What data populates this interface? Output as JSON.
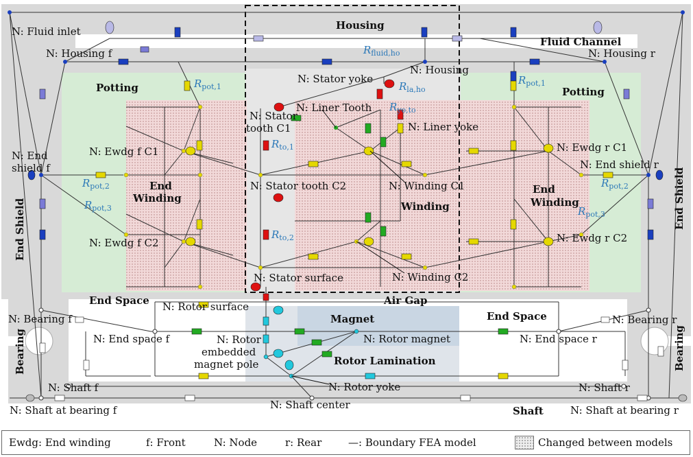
{
  "regions": {
    "housing": "Housing",
    "fluid_channel": "Fluid Channel",
    "potting_f": "Potting",
    "potting_r": "Potting",
    "end_winding_f": [
      "End",
      "Winding"
    ],
    "end_winding_r": [
      "End",
      "Winding"
    ],
    "winding": "Winding",
    "end_shield_f": "End Shield",
    "end_shield_r": "End Shield",
    "end_space_f": "End Space",
    "end_space_r": "End Space",
    "air_gap": "Air Gap",
    "magnet": "Magnet",
    "rotor_lamination": "Rotor Lamination",
    "bearing_f": "Bearing",
    "bearing_r": "Bearing",
    "shaft": "Shaft"
  },
  "nodes": {
    "fluid_inlet": "N: Fluid inlet",
    "housing_f": "N: Housing f",
    "housing_r": "N: Housing r",
    "housing": "N: Housing",
    "stator_yoke": "N: Stator yoke",
    "liner_tooth": "N: Liner Tooth",
    "liner_yoke": "N: Liner yoke",
    "stator_tooth_c1": [
      "N: Stator",
      "tooth C1"
    ],
    "stator_tooth_c2": "N: Stator tooth C2",
    "stator_surface": "N: Stator surface",
    "winding_c1": "N: Winding C1",
    "winding_c2": "N: Winding C2",
    "ewdg_f_c1": "N: Ewdg f C1",
    "ewdg_f_c2": "N: Ewdg f C2",
    "ewdg_r_c1": "N: Ewdg r C1",
    "ewdg_r_c2": "N: Ewdg r C2",
    "end_shield_f": [
      "N: End",
      "shield f"
    ],
    "end_shield_r": "N: End shield r",
    "rotor_surface": "N: Rotor surface",
    "rotor_magnet": "N: Rotor magnet",
    "rotor_embedded": [
      "N: Rotor",
      "embedded",
      "magnet pole"
    ],
    "rotor_yoke": "N: Rotor yoke",
    "end_space_f": "N: End space f",
    "end_space_r": "N: End space r",
    "bearing_f": "N: Bearing f",
    "bearing_r": "N: Bearing r",
    "shaft_f": "N: Shaft f",
    "shaft_r": "N: Shaft r",
    "shaft_bearing_f": "N: Shaft at bearing f",
    "shaft_bearing_r": "N: Shaft at bearing r",
    "shaft_center": "N: Shaft center"
  },
  "resistances": {
    "fluid_ho": {
      "r": "R",
      "sub": "fluid,ho"
    },
    "la_ho": {
      "r": "R",
      "sub": "la,ho"
    },
    "yo_to": {
      "r": "R",
      "sub": "yo,to"
    },
    "to_1": {
      "r": "R",
      "sub": "to,1"
    },
    "to_2": {
      "r": "R",
      "sub": "to,2"
    },
    "pot_1_f": {
      "r": "R",
      "sub": "pot,1"
    },
    "pot_1_r": {
      "r": "R",
      "sub": "pot,1"
    },
    "pot_2_f": {
      "r": "R",
      "sub": "pot,2"
    },
    "pot_2_r": {
      "r": "R",
      "sub": "pot,2"
    },
    "pot_3_f": {
      "r": "R",
      "sub": "pot,3"
    },
    "pot_3_r": {
      "r": "R",
      "sub": "pot,3"
    }
  },
  "legend": {
    "ewdg": "Ewdg: End winding",
    "front": "f: Front",
    "node": "N: Node",
    "rear": "r: Rear",
    "boundary": "—: Boundary FEA model",
    "changed": "Changed between models"
  },
  "colors": {
    "housing_gray": "#d9d9d9",
    "potting_green": "#d6ecd5",
    "winding_pink": "#f2d9d9",
    "stator_gray": "#e6e6e6",
    "magnet_blue": "#c9d6e3",
    "node_blue": "#1a3fbf",
    "node_yellow": "#f0e000",
    "node_red": "#dd1111",
    "node_cyan": "#22c8dd",
    "node_green": "#22aa22",
    "resistance_label": "#2b78b8"
  }
}
